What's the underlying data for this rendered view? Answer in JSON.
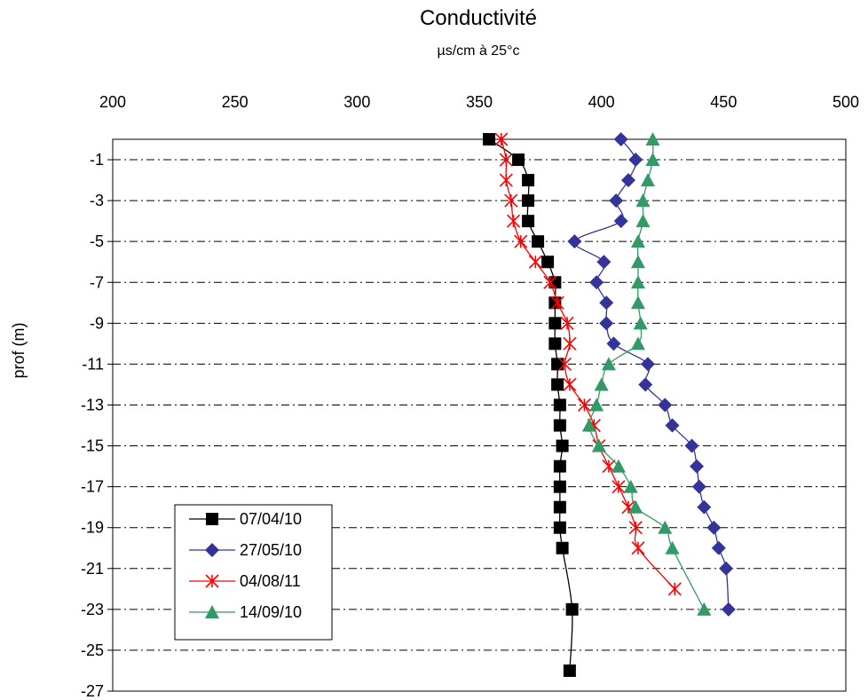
{
  "chart_data": {
    "type": "line",
    "title": "Conductivité",
    "subtitle": "µs/cm à 25°c",
    "xlabel": "",
    "ylabel": "prof (m)",
    "xlim": [
      200,
      500
    ],
    "ylim": [
      -27,
      0
    ],
    "x_axis_position": "top",
    "xticks": [
      "200",
      "250",
      "300",
      "350",
      "400",
      "450",
      "500"
    ],
    "yticks": [
      "-1",
      "-3",
      "-5",
      "-7",
      "-9",
      "-11",
      "-13",
      "-15",
      "-17",
      "-19",
      "-21",
      "-23",
      "-25",
      "-27"
    ],
    "grid": "horizontal dashed",
    "legend_position": "bottom-left",
    "series": [
      {
        "name": "07/04/10",
        "color": "#000000",
        "marker": "square",
        "points": [
          [
            354,
            0
          ],
          [
            366,
            -1
          ],
          [
            370,
            -2
          ],
          [
            370,
            -3
          ],
          [
            370,
            -4
          ],
          [
            374,
            -5
          ],
          [
            378,
            -6
          ],
          [
            381,
            -7
          ],
          [
            381,
            -8
          ],
          [
            381,
            -9
          ],
          [
            381,
            -10
          ],
          [
            382,
            -11
          ],
          [
            382,
            -12
          ],
          [
            383,
            -13
          ],
          [
            383,
            -14
          ],
          [
            384,
            -15
          ],
          [
            383,
            -16
          ],
          [
            383,
            -17
          ],
          [
            383,
            -18
          ],
          [
            383,
            -19
          ],
          [
            384,
            -20
          ],
          [
            388,
            -23
          ],
          [
            387,
            -26
          ]
        ]
      },
      {
        "name": "27/05/10",
        "color": "#333399",
        "marker": "diamond",
        "points": [
          [
            408,
            0
          ],
          [
            414,
            -1
          ],
          [
            411,
            -2
          ],
          [
            406,
            -3
          ],
          [
            408,
            -4
          ],
          [
            389,
            -5
          ],
          [
            401,
            -6
          ],
          [
            398,
            -7
          ],
          [
            402,
            -8
          ],
          [
            402,
            -9
          ],
          [
            405,
            -10
          ],
          [
            419,
            -11
          ],
          [
            418,
            -12
          ],
          [
            426,
            -13
          ],
          [
            429,
            -14
          ],
          [
            437,
            -15
          ],
          [
            439,
            -16
          ],
          [
            440,
            -17
          ],
          [
            442,
            -18
          ],
          [
            446,
            -19
          ],
          [
            448,
            -20
          ],
          [
            451,
            -21
          ],
          [
            452,
            -23
          ]
        ]
      },
      {
        "name": "04/08/11",
        "color": "#ff0000",
        "marker": "asterisk",
        "points": [
          [
            359,
            0
          ],
          [
            361,
            -1
          ],
          [
            361,
            -2
          ],
          [
            363,
            -3
          ],
          [
            364,
            -4
          ],
          [
            367,
            -5
          ],
          [
            373,
            -6
          ],
          [
            379,
            -7
          ],
          [
            382,
            -8
          ],
          [
            386,
            -9
          ],
          [
            387,
            -10
          ],
          [
            385,
            -11
          ],
          [
            387,
            -12
          ],
          [
            393,
            -13
          ],
          [
            397,
            -14
          ],
          [
            399,
            -15
          ],
          [
            403,
            -16
          ],
          [
            407,
            -17
          ],
          [
            411,
            -18
          ],
          [
            414,
            -19
          ],
          [
            415,
            -20
          ],
          [
            430,
            -22
          ]
        ]
      },
      {
        "name": "14/09/10",
        "color": "#339966",
        "marker": "triangle",
        "points": [
          [
            421,
            0
          ],
          [
            421,
            -1
          ],
          [
            419,
            -2
          ],
          [
            417,
            -3
          ],
          [
            417,
            -4
          ],
          [
            415,
            -5
          ],
          [
            415,
            -6
          ],
          [
            415,
            -7
          ],
          [
            415,
            -8
          ],
          [
            416,
            -9
          ],
          [
            415,
            -10
          ],
          [
            403,
            -11
          ],
          [
            400,
            -12
          ],
          [
            398,
            -13
          ],
          [
            395,
            -14
          ],
          [
            399,
            -15
          ],
          [
            407,
            -16
          ],
          [
            412,
            -17
          ],
          [
            414,
            -18
          ],
          [
            426,
            -19
          ],
          [
            429,
            -20
          ],
          [
            442,
            -23
          ]
        ]
      }
    ]
  }
}
